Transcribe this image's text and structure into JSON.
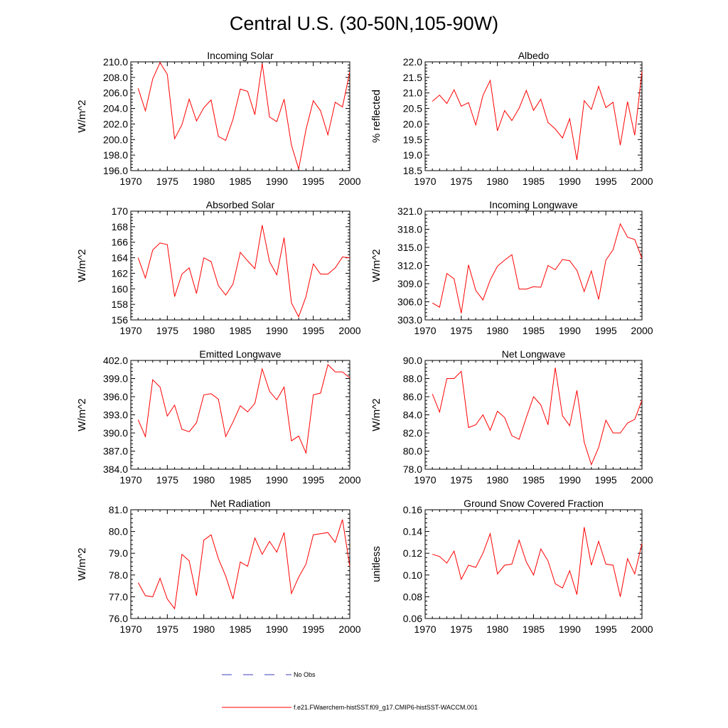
{
  "figure": {
    "title": "Central U.S. (30-50N,105-90W)",
    "legend": [
      {
        "label": "No Obs",
        "style": "dashed",
        "color": "#3f3fbf"
      },
      {
        "label": "f.e21.FWaerchem-histSST.f09_g17.CMIP6-histSST-WACCM.001",
        "style": "solid",
        "color": "#ff0000"
      }
    ]
  },
  "chart_data": [
    {
      "type": "line",
      "title": "Incoming Solar",
      "ylabel": "W/m^2",
      "xlim": [
        1970,
        2000
      ],
      "ylim": [
        196.0,
        210.0
      ],
      "xticks": [
        1970,
        1975,
        1980,
        1985,
        1990,
        1995,
        2000
      ],
      "yticks": [
        "196.0",
        "198.0",
        "200.0",
        "202.0",
        "204.0",
        "206.0",
        "208.0",
        "210.0"
      ],
      "series": [
        {
          "color": "#ff0000",
          "x": [
            1971,
            1972,
            1973,
            1974,
            1975,
            1976,
            1977,
            1978,
            1979,
            1980,
            1981,
            1982,
            1983,
            1984,
            1985,
            1986,
            1987,
            1988,
            1989,
            1990,
            1991,
            1992,
            1993,
            1994,
            1995,
            1996,
            1997,
            1998,
            1999,
            2000
          ],
          "y": [
            206.6,
            203.7,
            207.8,
            209.9,
            208.4,
            200.1,
            201.9,
            205.2,
            202.4,
            204.1,
            205.1,
            200.4,
            199.9,
            202.6,
            206.5,
            206.2,
            203.2,
            209.8,
            202.9,
            202.3,
            205.2,
            199.3,
            196.2,
            201.3,
            205.0,
            203.7,
            200.6,
            204.8,
            204.2,
            208.7
          ]
        }
      ]
    },
    {
      "type": "line",
      "title": "Albedo",
      "ylabel": "% reflected",
      "xlim": [
        1970,
        2000
      ],
      "ylim": [
        18.5,
        22.0
      ],
      "xticks": [
        1970,
        1975,
        1980,
        1985,
        1990,
        1995,
        2000
      ],
      "yticks": [
        "18.5",
        "19.0",
        "19.5",
        "20.0",
        "20.5",
        "21.0",
        "21.5",
        "22.0"
      ],
      "series": [
        {
          "color": "#ff0000",
          "x": [
            1971,
            1972,
            1973,
            1974,
            1975,
            1976,
            1977,
            1978,
            1979,
            1980,
            1981,
            1982,
            1983,
            1984,
            1985,
            1986,
            1987,
            1988,
            1989,
            1990,
            1991,
            1992,
            1993,
            1994,
            1995,
            1996,
            1997,
            1998,
            1999,
            2000
          ],
          "y": [
            20.73,
            20.93,
            20.66,
            21.1,
            20.57,
            20.69,
            19.97,
            20.92,
            21.4,
            19.78,
            20.43,
            20.11,
            20.51,
            21.08,
            20.44,
            20.8,
            20.05,
            19.84,
            19.55,
            20.17,
            18.84,
            20.75,
            20.47,
            21.21,
            20.53,
            20.7,
            19.32,
            20.72,
            19.64,
            21.7
          ]
        }
      ]
    },
    {
      "type": "line",
      "title": "Absorbed Solar",
      "ylabel": "W/m^2",
      "xlim": [
        1970,
        2000
      ],
      "ylim": [
        156,
        170
      ],
      "xticks": [
        1970,
        1975,
        1980,
        1985,
        1990,
        1995,
        2000
      ],
      "yticks": [
        "156",
        "158",
        "160",
        "162",
        "164",
        "166",
        "168",
        "170"
      ],
      "series": [
        {
          "color": "#ff0000",
          "x": [
            1971,
            1972,
            1973,
            1974,
            1975,
            1976,
            1977,
            1978,
            1979,
            1980,
            1981,
            1982,
            1983,
            1984,
            1985,
            1986,
            1987,
            1988,
            1989,
            1990,
            1991,
            1992,
            1993,
            1994,
            1995,
            1996,
            1997,
            1998,
            1999,
            2000
          ],
          "y": [
            164.0,
            161.4,
            165.0,
            165.9,
            165.7,
            159.0,
            161.9,
            162.7,
            159.4,
            164.0,
            163.5,
            160.4,
            159.2,
            160.6,
            164.7,
            163.6,
            162.6,
            168.2,
            163.5,
            161.8,
            166.6,
            158.2,
            156.4,
            159.0,
            163.2,
            161.9,
            161.9,
            162.7,
            164.1,
            164.0
          ]
        }
      ]
    },
    {
      "type": "line",
      "title": "Incoming Longwave",
      "ylabel": "W/m^2",
      "xlim": [
        1970,
        2000
      ],
      "ylim": [
        303.0,
        321.0
      ],
      "xticks": [
        1970,
        1975,
        1980,
        1985,
        1990,
        1995,
        2000
      ],
      "yticks": [
        "303.0",
        "306.0",
        "309.0",
        "312.0",
        "315.0",
        "318.0",
        "321.0"
      ],
      "series": [
        {
          "color": "#ff0000",
          "x": [
            1971,
            1972,
            1973,
            1974,
            1975,
            1976,
            1977,
            1978,
            1979,
            1980,
            1981,
            1982,
            1983,
            1984,
            1985,
            1986,
            1987,
            1988,
            1989,
            1990,
            1991,
            1992,
            1993,
            1994,
            1995,
            1996,
            1997,
            1998,
            1999,
            2000
          ],
          "y": [
            305.8,
            305.1,
            310.7,
            309.8,
            304.1,
            312.1,
            307.9,
            306.3,
            309.6,
            311.9,
            312.9,
            313.8,
            308.1,
            308.1,
            308.5,
            308.4,
            312.0,
            311.3,
            313.0,
            312.8,
            311.2,
            307.7,
            311.1,
            306.4,
            312.9,
            314.6,
            318.9,
            316.7,
            316.3,
            313.2
          ]
        }
      ]
    },
    {
      "type": "line",
      "title": "Emitted Longwave",
      "ylabel": "W/m^2",
      "xlim": [
        1970,
        2000
      ],
      "ylim": [
        384.0,
        402.0
      ],
      "xticks": [
        1970,
        1975,
        1980,
        1985,
        1990,
        1995,
        2000
      ],
      "yticks": [
        "384.0",
        "387.0",
        "390.0",
        "393.0",
        "396.0",
        "399.0",
        "402.0"
      ],
      "series": [
        {
          "color": "#ff0000",
          "x": [
            1971,
            1972,
            1973,
            1974,
            1975,
            1976,
            1977,
            1978,
            1979,
            1980,
            1981,
            1982,
            1983,
            1984,
            1985,
            1986,
            1987,
            1988,
            1989,
            1990,
            1991,
            1992,
            1993,
            1994,
            1995,
            1996,
            1997,
            1998,
            1999,
            2000
          ],
          "y": [
            392.2,
            389.4,
            398.8,
            397.6,
            392.8,
            394.6,
            390.6,
            390.2,
            391.7,
            396.3,
            396.5,
            395.6,
            389.4,
            391.8,
            394.5,
            393.5,
            394.9,
            400.6,
            396.9,
            395.5,
            397.6,
            388.7,
            389.5,
            386.7,
            396.3,
            396.6,
            401.3,
            400.1,
            400.1,
            399.1
          ]
        }
      ]
    },
    {
      "type": "line",
      "title": "Net Longwave",
      "ylabel": "W/m^2",
      "xlim": [
        1970,
        2000
      ],
      "ylim": [
        78.0,
        90.0
      ],
      "xticks": [
        1970,
        1975,
        1980,
        1985,
        1990,
        1995,
        2000
      ],
      "yticks": [
        "78.0",
        "80.0",
        "82.0",
        "84.0",
        "86.0",
        "88.0",
        "90.0"
      ],
      "series": [
        {
          "color": "#ff0000",
          "x": [
            1971,
            1972,
            1973,
            1974,
            1975,
            1976,
            1977,
            1978,
            1979,
            1980,
            1981,
            1982,
            1983,
            1984,
            1985,
            1986,
            1987,
            1988,
            1989,
            1990,
            1991,
            1992,
            1993,
            1994,
            1995,
            1996,
            1997,
            1998,
            1999,
            2000
          ],
          "y": [
            86.3,
            84.3,
            88.0,
            88.0,
            88.8,
            82.6,
            82.9,
            84.0,
            82.3,
            84.4,
            83.7,
            81.7,
            81.3,
            83.7,
            86.0,
            85.1,
            82.9,
            89.2,
            83.9,
            82.8,
            86.7,
            81.0,
            78.5,
            80.4,
            83.4,
            82.0,
            82.0,
            83.1,
            83.5,
            85.6
          ]
        }
      ]
    },
    {
      "type": "line",
      "title": "Net Radiation",
      "ylabel": "W/m^2",
      "xlim": [
        1970,
        2000
      ],
      "ylim": [
        76.0,
        81.0
      ],
      "xticks": [
        1970,
        1975,
        1980,
        1985,
        1990,
        1995,
        2000
      ],
      "yticks": [
        "76.0",
        "77.0",
        "78.0",
        "79.0",
        "80.0",
        "81.0"
      ],
      "series": [
        {
          "color": "#ff0000",
          "x": [
            1971,
            1972,
            1973,
            1974,
            1975,
            1976,
            1977,
            1978,
            1979,
            1980,
            1981,
            1982,
            1983,
            1984,
            1985,
            1986,
            1987,
            1988,
            1989,
            1990,
            1991,
            1992,
            1993,
            1994,
            1995,
            1996,
            1997,
            1998,
            1999,
            2000
          ],
          "y": [
            77.65,
            77.05,
            77.0,
            77.85,
            76.9,
            76.45,
            78.95,
            78.65,
            77.05,
            79.6,
            79.85,
            78.75,
            77.95,
            76.9,
            78.6,
            78.4,
            79.7,
            78.95,
            79.55,
            79.05,
            79.95,
            77.15,
            77.9,
            78.5,
            79.85,
            79.9,
            79.95,
            79.5,
            80.55,
            78.4
          ]
        }
      ]
    },
    {
      "type": "line",
      "title": "Ground Snow Covered Fraction",
      "ylabel": "unitless",
      "xlim": [
        1970,
        2000
      ],
      "ylim": [
        0.06,
        0.16
      ],
      "xticks": [
        1970,
        1975,
        1980,
        1985,
        1990,
        1995,
        2000
      ],
      "yticks": [
        "0.06",
        "0.08",
        "0.10",
        "0.12",
        "0.14",
        "0.16"
      ],
      "series": [
        {
          "color": "#ff0000",
          "x": [
            1971,
            1972,
            1973,
            1974,
            1975,
            1976,
            1977,
            1978,
            1979,
            1980,
            1981,
            1982,
            1983,
            1984,
            1985,
            1986,
            1987,
            1988,
            1989,
            1990,
            1991,
            1992,
            1993,
            1994,
            1995,
            1996,
            1997,
            1998,
            1999,
            2000
          ],
          "y": [
            0.119,
            0.117,
            0.111,
            0.122,
            0.096,
            0.109,
            0.107,
            0.12,
            0.138,
            0.101,
            0.109,
            0.11,
            0.132,
            0.112,
            0.1,
            0.124,
            0.113,
            0.092,
            0.088,
            0.104,
            0.082,
            0.144,
            0.109,
            0.131,
            0.11,
            0.109,
            0.08,
            0.115,
            0.101,
            0.129
          ]
        }
      ]
    }
  ]
}
